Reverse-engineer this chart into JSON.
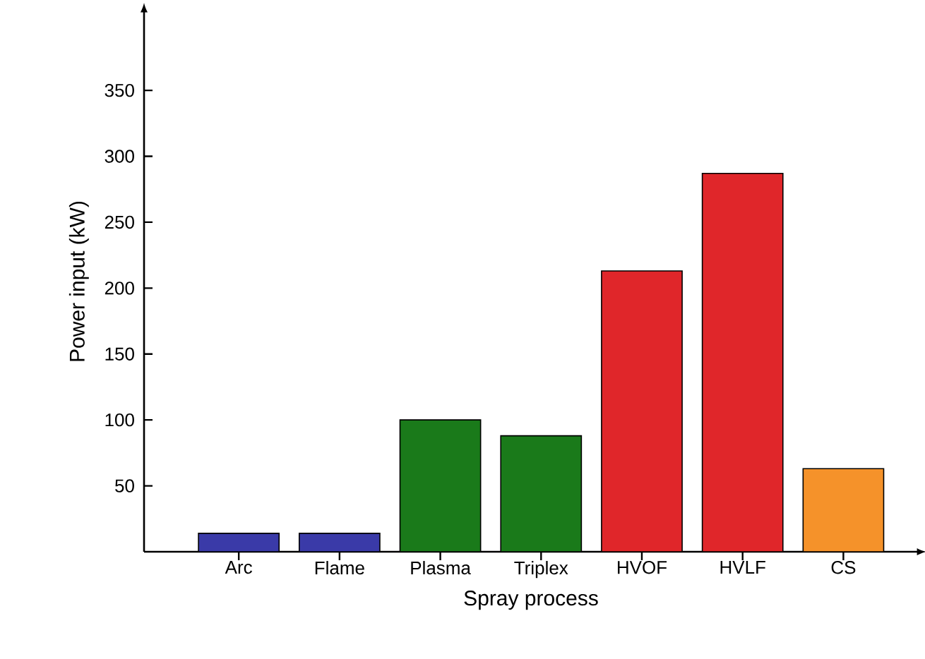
{
  "chart_data": {
    "type": "bar",
    "xlabel": "Spray process",
    "ylabel": "Power input (kW)",
    "categories": [
      "Arc",
      "Flame",
      "Plasma",
      "Triplex",
      "HVOF",
      "HVLF",
      "CS"
    ],
    "values": [
      14,
      14,
      100,
      88,
      213,
      287,
      63
    ],
    "colors": [
      "#3a3aa8",
      "#3a3aa8",
      "#1a7a1a",
      "#1a7a1a",
      "#e0262a",
      "#e0262a",
      "#f5922a"
    ],
    "ylim": [
      0,
      410
    ],
    "yticks": [
      50,
      100,
      150,
      200,
      250,
      300,
      350
    ],
    "grid": false
  }
}
